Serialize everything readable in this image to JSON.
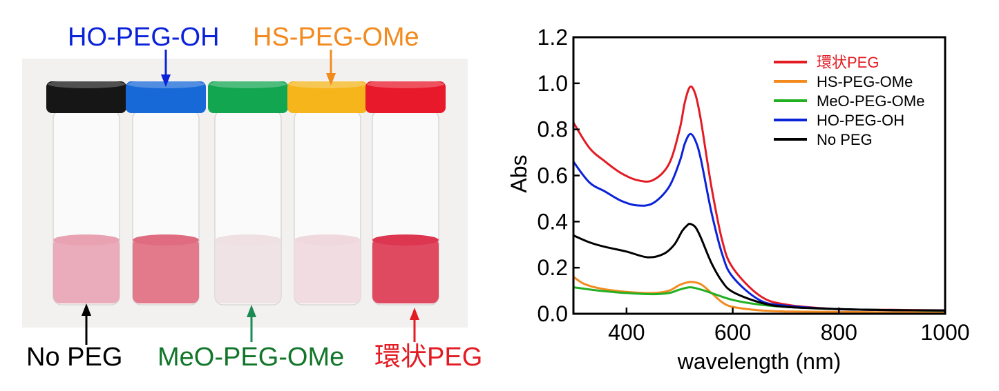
{
  "photo": {
    "vials": [
      {
        "label": "No PEG",
        "cap_color": "#161616",
        "liquid_color": "#e8a2b2",
        "label_color": "#000000"
      },
      {
        "label": "HO-PEG-OH",
        "cap_color": "#1769d8",
        "liquid_color": "#df6c80",
        "label_color": "#0a22d8"
      },
      {
        "label": "MeO-PEG-OMe",
        "cap_color": "#12a650",
        "liquid_color": "#eee0e3",
        "label_color": "#12762a"
      },
      {
        "label": "HS-PEG-OMe",
        "cap_color": "#f5b51b",
        "liquid_color": "#efd9de",
        "label_color": "#f28a1e"
      },
      {
        "label": "環状PEG",
        "cap_color": "#e8192a",
        "liquid_color": "#dc3650",
        "label_color": "#e31b23"
      }
    ]
  },
  "chart_data": {
    "type": "line",
    "xlabel": "wavelength (nm)",
    "ylabel": "Abs",
    "xlim": [
      300,
      1000
    ],
    "ylim": [
      0,
      1.2
    ],
    "xticks": [
      "400",
      "600",
      "800",
      "1000"
    ],
    "yticks": [
      "0.0",
      "0.2",
      "0.4",
      "0.6",
      "0.8",
      "1.0",
      "1.2"
    ],
    "legend_position": "top-right",
    "series": [
      {
        "name": "環状PEG",
        "color": "#e31b23",
        "x": [
          300,
          330,
          360,
          390,
          420,
          450,
          480,
          500,
          510,
          520,
          530,
          540,
          560,
          580,
          600,
          650,
          700,
          800,
          900,
          1000
        ],
        "y": [
          0.83,
          0.72,
          0.66,
          0.61,
          0.58,
          0.58,
          0.65,
          0.8,
          0.92,
          0.985,
          0.95,
          0.84,
          0.55,
          0.32,
          0.2,
          0.08,
          0.04,
          0.02,
          0.017,
          0.015
        ]
      },
      {
        "name": "HS-PEG-OMe",
        "color": "#f28a1e",
        "x": [
          300,
          320,
          350,
          400,
          450,
          480,
          500,
          520,
          540,
          560,
          580,
          600,
          650,
          700,
          800,
          900,
          1000
        ],
        "y": [
          0.16,
          0.13,
          0.11,
          0.095,
          0.09,
          0.1,
          0.125,
          0.138,
          0.128,
          0.09,
          0.05,
          0.03,
          0.015,
          0.01,
          0.008,
          0.006,
          0.005
        ]
      },
      {
        "name": "MeO-PEG-OMe",
        "color": "#22b022",
        "x": [
          300,
          350,
          400,
          450,
          480,
          500,
          520,
          540,
          560,
          600,
          650,
          700,
          800,
          900,
          1000
        ],
        "y": [
          0.115,
          0.1,
          0.09,
          0.085,
          0.09,
          0.105,
          0.115,
          0.105,
          0.09,
          0.06,
          0.04,
          0.03,
          0.02,
          0.016,
          0.013
        ]
      },
      {
        "name": "HO-PEG-OH",
        "color": "#0a22d8",
        "x": [
          300,
          330,
          360,
          390,
          420,
          450,
          480,
          500,
          510,
          520,
          530,
          540,
          560,
          580,
          600,
          650,
          700,
          800,
          900,
          1000
        ],
        "y": [
          0.66,
          0.57,
          0.53,
          0.49,
          0.47,
          0.48,
          0.55,
          0.66,
          0.74,
          0.78,
          0.75,
          0.67,
          0.44,
          0.26,
          0.16,
          0.06,
          0.035,
          0.02,
          0.016,
          0.014
        ]
      },
      {
        "name": "No PEG",
        "color": "#000000",
        "x": [
          300,
          330,
          360,
          400,
          440,
          470,
          490,
          505,
          515,
          520,
          530,
          540,
          560,
          580,
          600,
          650,
          700,
          800,
          900,
          1000
        ],
        "y": [
          0.34,
          0.31,
          0.29,
          0.27,
          0.245,
          0.26,
          0.3,
          0.36,
          0.385,
          0.39,
          0.375,
          0.33,
          0.22,
          0.14,
          0.095,
          0.05,
          0.03,
          0.02,
          0.016,
          0.014
        ]
      }
    ]
  }
}
